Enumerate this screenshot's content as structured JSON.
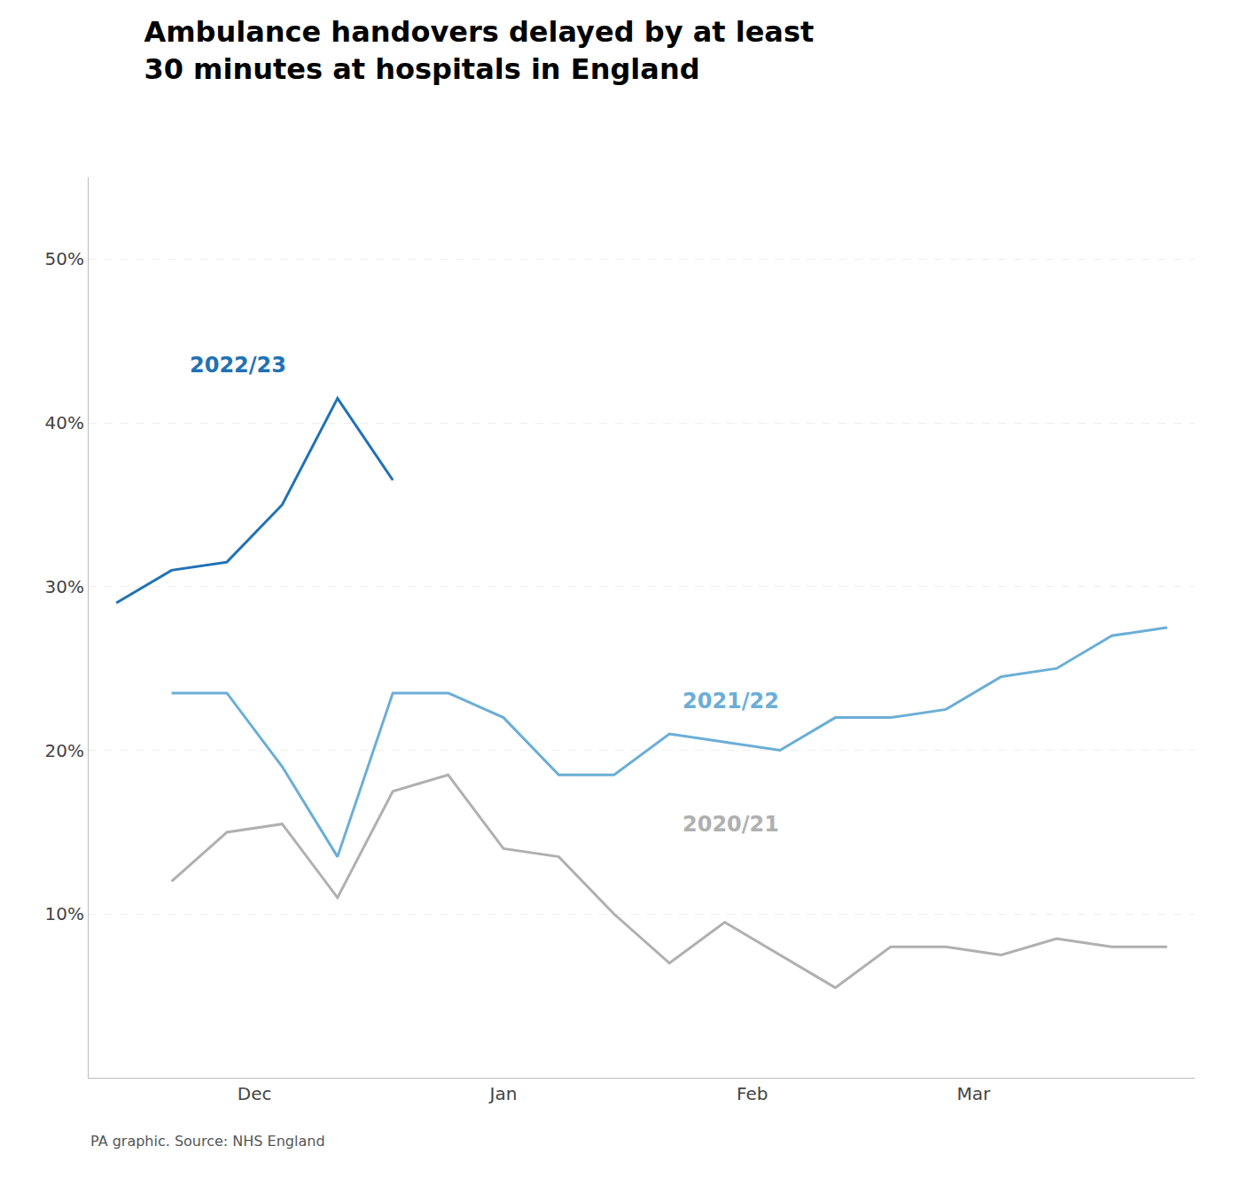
{
  "chart_data": {
    "type": "line",
    "title": "Ambulance handovers delayed by at least\n30 minutes at hospitals in England",
    "source": "PA graphic. Source: NHS England",
    "series": [
      {
        "name": "2022/23",
        "color": "#2171b5",
        "x": [
          0,
          1,
          2,
          3,
          4,
          5,
          6
        ],
        "values": [
          29.0,
          31.0,
          31.5,
          35.0,
          41.5,
          36.5,
          null
        ]
      },
      {
        "name": "2021/22",
        "color": "#6baed6",
        "x": [
          1,
          2,
          3,
          4,
          5,
          6,
          7,
          8,
          9,
          10,
          11,
          12,
          13,
          14,
          15,
          16,
          17,
          18,
          19
        ],
        "values": [
          23.5,
          23.5,
          19.0,
          13.5,
          23.5,
          23.5,
          22.0,
          18.5,
          18.5,
          21.0,
          20.5,
          20.0,
          22.0,
          22.0,
          22.5,
          24.5,
          25.0,
          27.0,
          27.5
        ]
      },
      {
        "name": "2020/21",
        "color": "#b0b0b0",
        "x": [
          1,
          2,
          3,
          4,
          5,
          6,
          7,
          8,
          9,
          10,
          11,
          12,
          13,
          14,
          15,
          16,
          17,
          18,
          19
        ],
        "values": [
          12.0,
          15.0,
          15.5,
          11.0,
          17.5,
          18.5,
          14.0,
          13.5,
          10.0,
          7.0,
          9.5,
          7.5,
          5.5,
          8.0,
          8.0,
          7.5,
          8.5,
          8.0,
          8.0
        ]
      }
    ],
    "annotations": [
      {
        "text": "2022/23",
        "x": 1.3,
        "y": 43.5,
        "color": "#2171b5"
      },
      {
        "text": "2021/22",
        "x": 10.2,
        "y": 23.0,
        "color": "#6baed6"
      },
      {
        "text": "2020/21",
        "x": 10.2,
        "y": 15.5,
        "color": "#b0b0b0"
      }
    ],
    "xlim": [
      -0.5,
      19.5
    ],
    "xticks": [
      {
        "value": 2.5,
        "label": "Dec"
      },
      {
        "value": 7.0,
        "label": "Jan"
      },
      {
        "value": 11.5,
        "label": "Feb"
      },
      {
        "value": 15.5,
        "label": "Mar"
      }
    ],
    "ylim": [
      0,
      55
    ],
    "yticks": [
      {
        "value": 10,
        "label": "10%"
      },
      {
        "value": 20,
        "label": "20%"
      },
      {
        "value": 30,
        "label": "30%"
      },
      {
        "value": 40,
        "label": "40%"
      },
      {
        "value": 50,
        "label": "50%"
      }
    ],
    "grid": true
  }
}
